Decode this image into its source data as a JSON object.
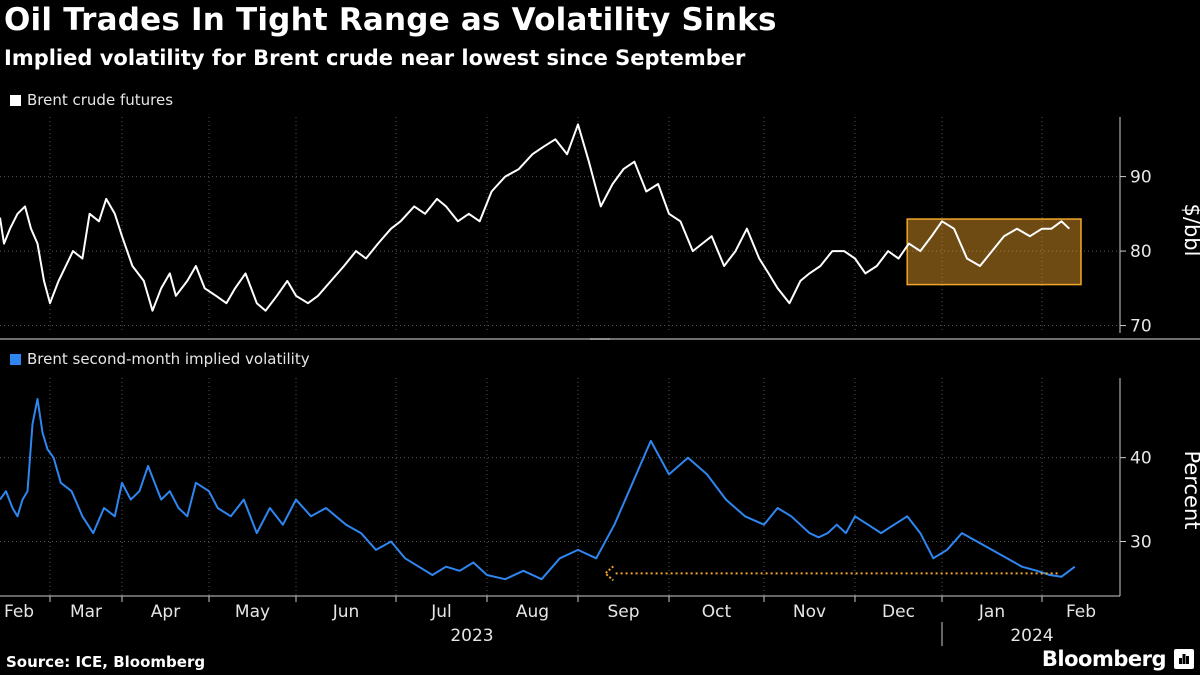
{
  "title": "Oil Trades In Tight Range as Volatility Sinks",
  "subtitle": "Implied volatility for Brent crude near lowest since September",
  "source": "Source: ICE, Bloomberg",
  "brand": "Bloomberg",
  "colors": {
    "background": "#000000",
    "price_line": "#ffffff",
    "vol_line": "#2f86f0",
    "highlight": "#f2a72b",
    "grid": "#555555"
  },
  "chart_data": [
    {
      "type": "line",
      "title": "Brent crude futures",
      "ylabel": "$/bbl",
      "ylim": [
        69,
        98
      ],
      "yticks": [
        70,
        80,
        90
      ],
      "x_months": [
        "Feb",
        "Mar",
        "Apr",
        "May",
        "Jun",
        "Jul",
        "Aug",
        "Sep",
        "Oct",
        "Nov",
        "Dec",
        "Jan",
        "Feb"
      ],
      "x_years": [
        "2023",
        "2024"
      ],
      "series": [
        {
          "name": "Brent crude futures",
          "x_month": [
            0.0,
            0.08,
            0.2,
            0.35,
            0.5,
            0.62,
            0.75,
            0.88,
            1.0,
            1.12,
            1.22,
            1.32,
            1.45,
            1.55,
            1.68,
            1.78,
            1.9,
            2.0,
            2.12,
            2.25,
            2.35,
            2.45,
            2.55,
            2.62,
            2.75,
            2.85,
            2.95,
            3.08,
            3.2,
            3.3,
            3.42,
            3.55,
            3.65,
            3.78,
            3.9,
            4.0,
            4.12,
            4.22,
            4.35,
            4.48,
            4.6,
            4.7,
            4.82,
            4.95,
            5.05,
            5.2,
            5.32,
            5.45,
            5.55,
            5.68,
            5.8,
            5.92,
            6.05,
            6.2,
            6.35,
            6.5,
            6.62,
            6.75,
            6.88,
            7.0,
            7.12,
            7.25,
            7.38,
            7.5,
            7.62,
            7.75,
            7.88,
            8.0,
            8.12,
            8.25,
            8.35,
            8.45,
            8.58,
            8.7,
            8.82,
            8.95,
            9.05,
            9.15,
            9.28,
            9.4,
            9.5,
            9.62,
            9.75,
            9.88,
            10.0,
            10.12,
            10.25,
            10.38,
            10.5,
            10.62,
            10.75,
            10.88,
            11.0,
            11.12,
            11.25,
            11.38,
            11.5,
            11.62,
            11.75,
            11.88,
            12.0,
            12.12,
            12.25,
            12.35
          ],
          "values": [
            84.5,
            81,
            83,
            85,
            86,
            83,
            81,
            76,
            73,
            76,
            78,
            80,
            79,
            85,
            84,
            87,
            85,
            82,
            78,
            76,
            72,
            75,
            77,
            74,
            76,
            78,
            75,
            74,
            73,
            75,
            77,
            73,
            72,
            74,
            76,
            74,
            73,
            74,
            76,
            78,
            80,
            79,
            81,
            83,
            84,
            86,
            85,
            87,
            86,
            84,
            85,
            84,
            88,
            90,
            91,
            93,
            94,
            95,
            93,
            97,
            92,
            86,
            89,
            91,
            92,
            88,
            89,
            85,
            84,
            80,
            81,
            82,
            78,
            80,
            83,
            79,
            77,
            75,
            73,
            76,
            77,
            78,
            80,
            80,
            79,
            77,
            78,
            80,
            79,
            81,
            80,
            82,
            84,
            83,
            79,
            78,
            80,
            82,
            83,
            82,
            83,
            83,
            84,
            83
          ]
        }
      ],
      "highlight": {
        "label": "tight range",
        "x_from": 10.6,
        "x_to": 12.5,
        "y_from": 75.5,
        "y_to": 84.3
      }
    },
    {
      "type": "line",
      "title": "Brent second-month implied volatility",
      "ylabel": "Percent",
      "ylim": [
        23.5,
        49.5
      ],
      "yticks": [
        30,
        40
      ],
      "series": [
        {
          "name": "Brent second-month implied volatility",
          "x_month": [
            0.0,
            0.12,
            0.25,
            0.35,
            0.45,
            0.55,
            0.65,
            0.75,
            0.85,
            0.95,
            1.05,
            1.15,
            1.3,
            1.45,
            1.6,
            1.75,
            1.9,
            2.0,
            2.1,
            2.2,
            2.3,
            2.45,
            2.55,
            2.65,
            2.75,
            2.85,
            3.0,
            3.1,
            3.25,
            3.4,
            3.55,
            3.7,
            3.85,
            4.0,
            4.15,
            4.3,
            4.5,
            4.65,
            4.8,
            4.95,
            5.1,
            5.25,
            5.4,
            5.55,
            5.7,
            5.85,
            6.0,
            6.2,
            6.4,
            6.6,
            6.8,
            7.0,
            7.2,
            7.4,
            7.6,
            7.8,
            8.0,
            8.2,
            8.4,
            8.6,
            8.8,
            9.0,
            9.15,
            9.3,
            9.4,
            9.5,
            9.6,
            9.7,
            9.8,
            9.9,
            10.0,
            10.15,
            10.3,
            10.45,
            10.6,
            10.75,
            10.9,
            11.05,
            11.2,
            11.35,
            11.5,
            11.65,
            11.8,
            11.95,
            12.1,
            12.25,
            12.35,
            12.42
          ],
          "values": [
            35,
            36,
            34,
            33,
            35,
            36,
            44,
            47,
            43,
            41,
            40,
            37,
            36,
            33,
            31,
            34,
            33,
            37,
            35,
            36,
            39,
            35,
            36,
            34,
            33,
            37,
            36,
            34,
            33,
            35,
            31,
            34,
            32,
            35,
            33,
            34,
            32,
            31,
            29,
            30,
            28,
            27,
            26,
            27,
            26.5,
            27.5,
            26,
            25.5,
            26.5,
            25.5,
            28,
            29,
            28,
            32,
            37,
            42,
            38,
            40,
            38,
            35,
            33,
            32,
            34,
            33,
            32,
            31,
            30.5,
            31,
            32,
            31,
            33,
            32,
            31,
            32,
            33,
            31,
            28,
            29,
            31,
            30,
            29,
            28,
            27,
            26.5,
            26,
            25.8,
            26.5,
            27
          ]
        }
      ],
      "annotation": {
        "type": "dotted-arrow",
        "label": "near lowest since September",
        "x_from": 12.2,
        "x_to": 7.3,
        "y": 26.2
      }
    }
  ]
}
